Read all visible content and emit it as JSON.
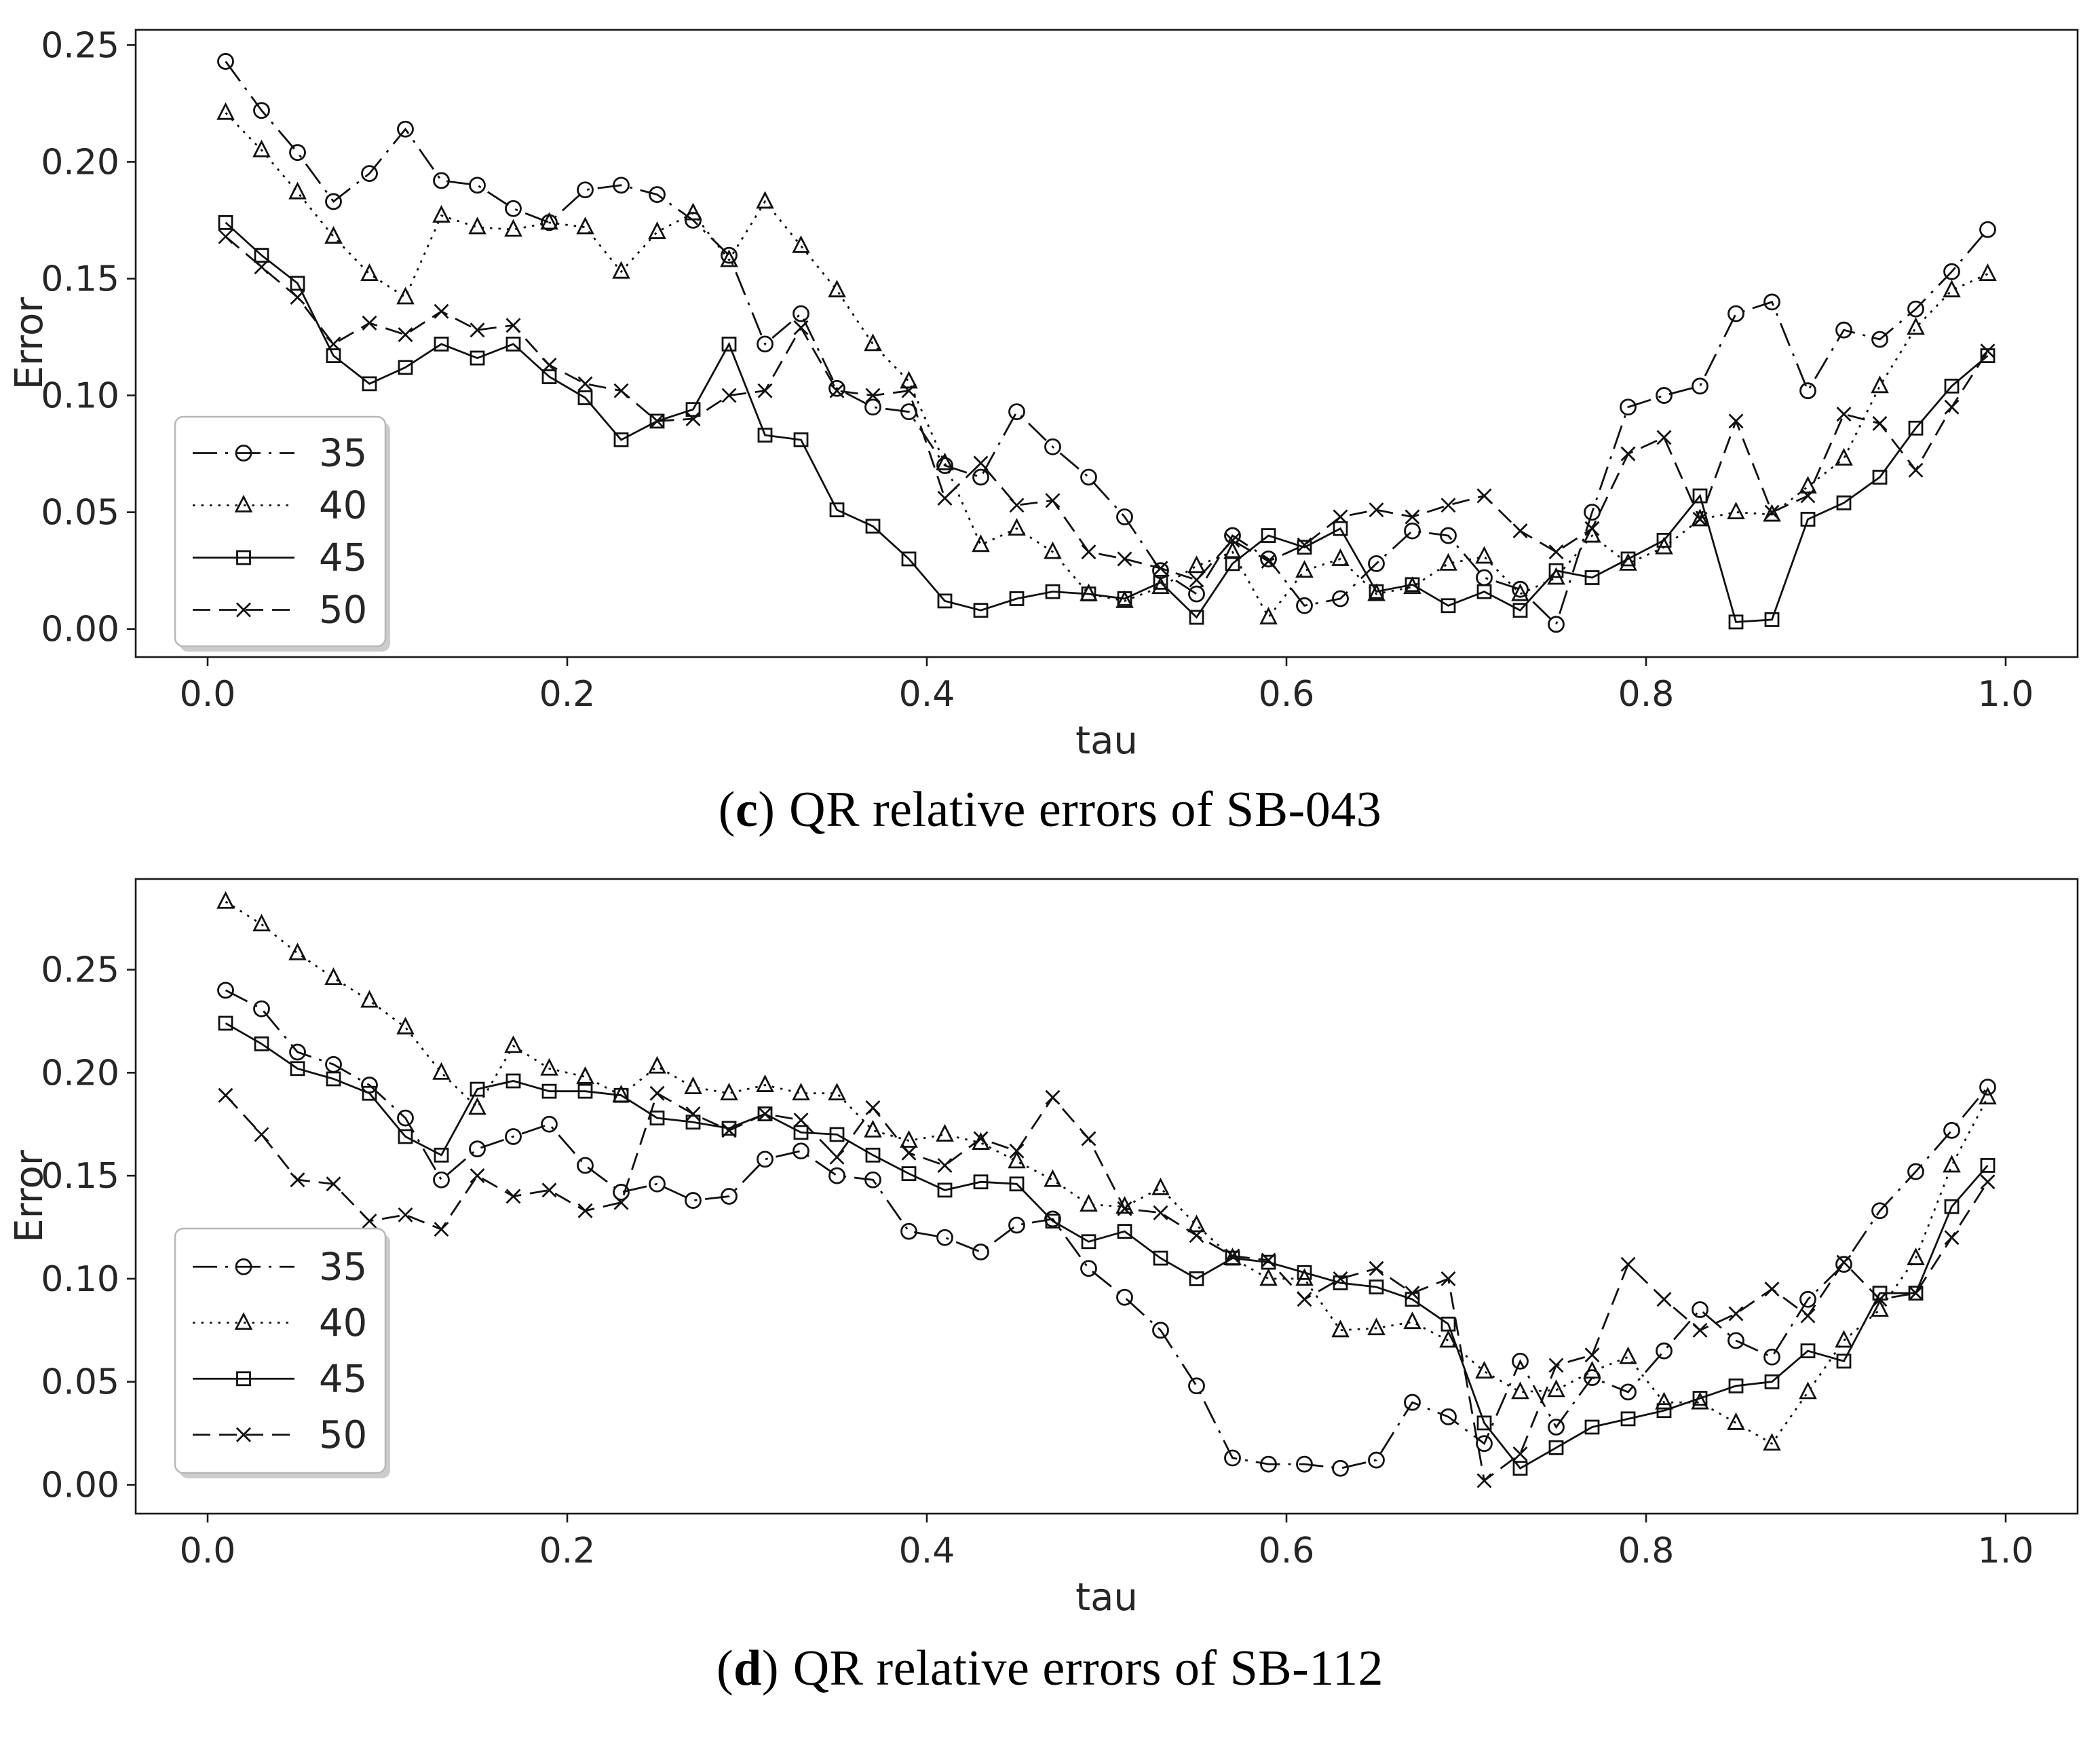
{
  "colors": {
    "line": "#111111",
    "spine": "#1a1a1a",
    "tick_label": "#262626",
    "legend_border": "#b8b8b8",
    "legend_shadow": "#cccccc",
    "background": "#ffffff"
  },
  "figures": [
    {
      "caption": {
        "open": "(",
        "letter": "c",
        "close": ")",
        "text": "QR relative errors of SB-043"
      },
      "chart_data": {
        "type": "line",
        "xlabel": "tau",
        "ylabel": "Error",
        "xlim": [
          -0.04,
          1.04
        ],
        "ylim": [
          -0.012,
          0.2565
        ],
        "grid": false,
        "legend_position": "lower-left",
        "xticks": {
          "values": [
            0.0,
            0.2,
            0.4,
            0.6,
            0.8,
            1.0
          ],
          "labels": [
            "0.0",
            "0.2",
            "0.4",
            "0.6",
            "0.8",
            "1.0"
          ]
        },
        "yticks": {
          "values": [
            0.0,
            0.05,
            0.1,
            0.15,
            0.2,
            0.25
          ],
          "labels": [
            "0.00",
            "0.05",
            "0.10",
            "0.15",
            "0.20",
            "0.25"
          ]
        },
        "x": [
          0.01,
          0.03,
          0.05,
          0.07,
          0.09,
          0.11,
          0.13,
          0.15,
          0.17,
          0.19,
          0.21,
          0.23,
          0.25,
          0.27,
          0.29,
          0.31,
          0.33,
          0.35,
          0.37,
          0.39,
          0.41,
          0.43,
          0.45,
          0.47,
          0.49,
          0.51,
          0.53,
          0.55,
          0.57,
          0.59,
          0.61,
          0.63,
          0.65,
          0.67,
          0.69,
          0.71,
          0.73,
          0.75,
          0.77,
          0.79,
          0.81,
          0.83,
          0.85,
          0.87,
          0.89,
          0.91,
          0.93,
          0.95,
          0.97,
          0.99
        ],
        "series": [
          {
            "name": "35",
            "marker": "circle",
            "line": "dashdot",
            "values": [
              0.243,
              0.222,
              0.204,
              0.183,
              0.195,
              0.214,
              0.192,
              0.19,
              0.18,
              0.174,
              0.188,
              0.19,
              0.186,
              0.175,
              0.16,
              0.122,
              0.135,
              0.103,
              0.095,
              0.093,
              0.07,
              0.065,
              0.093,
              0.078,
              0.065,
              0.048,
              0.025,
              0.015,
              0.04,
              0.03,
              0.01,
              0.013,
              0.028,
              0.042,
              0.04,
              0.022,
              0.017,
              0.002,
              0.05,
              0.095,
              0.1,
              0.104,
              0.135,
              0.14,
              0.102,
              0.128,
              0.124,
              0.137,
              0.153,
              0.171
            ]
          },
          {
            "name": "40",
            "marker": "triangle",
            "line": "dotted",
            "values": [
              0.221,
              0.205,
              0.187,
              0.168,
              0.152,
              0.142,
              0.177,
              0.172,
              0.171,
              0.174,
              0.172,
              0.153,
              0.17,
              0.178,
              0.158,
              0.183,
              0.164,
              0.145,
              0.122,
              0.106,
              0.071,
              0.036,
              0.043,
              0.033,
              0.015,
              0.012,
              0.018,
              0.027,
              0.033,
              0.005,
              0.025,
              0.03,
              0.015,
              0.018,
              0.028,
              0.031,
              0.015,
              0.022,
              0.04,
              0.028,
              0.035,
              0.047,
              0.05,
              0.049,
              0.061,
              0.073,
              0.104,
              0.129,
              0.145,
              0.152
            ]
          },
          {
            "name": "45",
            "marker": "square",
            "line": "solid",
            "values": [
              0.174,
              0.16,
              0.148,
              0.117,
              0.105,
              0.112,
              0.122,
              0.116,
              0.122,
              0.108,
              0.099,
              0.081,
              0.089,
              0.094,
              0.122,
              0.083,
              0.081,
              0.051,
              0.044,
              0.03,
              0.012,
              0.008,
              0.013,
              0.016,
              0.015,
              0.013,
              0.02,
              0.005,
              0.028,
              0.04,
              0.035,
              0.043,
              0.016,
              0.019,
              0.01,
              0.016,
              0.008,
              0.025,
              0.022,
              0.03,
              0.038,
              0.057,
              0.003,
              0.004,
              0.047,
              0.054,
              0.065,
              0.086,
              0.104,
              0.117
            ]
          },
          {
            "name": "50",
            "marker": "x",
            "line": "dashed",
            "values": [
              0.168,
              0.155,
              0.142,
              0.122,
              0.131,
              0.126,
              0.136,
              0.128,
              0.13,
              0.113,
              0.105,
              0.102,
              0.089,
              0.09,
              0.1,
              0.102,
              0.129,
              0.102,
              0.1,
              0.102,
              0.056,
              0.071,
              0.053,
              0.055,
              0.033,
              0.03,
              0.026,
              0.021,
              0.038,
              0.029,
              0.036,
              0.048,
              0.051,
              0.048,
              0.053,
              0.057,
              0.042,
              0.033,
              0.043,
              0.075,
              0.082,
              0.047,
              0.089,
              0.05,
              0.057,
              0.092,
              0.088,
              0.068,
              0.095,
              0.119
            ]
          }
        ]
      }
    },
    {
      "caption": {
        "open": "(",
        "letter": "d",
        "close": ")",
        "text": "QR relative errors of SB-112"
      },
      "chart_data": {
        "type": "line",
        "xlabel": "tau",
        "ylabel": "Error",
        "xlim": [
          -0.04,
          1.04
        ],
        "ylim": [
          -0.014,
          0.294
        ],
        "grid": false,
        "legend_position": "lower-left",
        "xticks": {
          "values": [
            0.0,
            0.2,
            0.4,
            0.6,
            0.8,
            1.0
          ],
          "labels": [
            "0.0",
            "0.2",
            "0.4",
            "0.6",
            "0.8",
            "1.0"
          ]
        },
        "yticks": {
          "values": [
            0.0,
            0.05,
            0.1,
            0.15,
            0.2,
            0.25
          ],
          "labels": [
            "0.00",
            "0.05",
            "0.10",
            "0.15",
            "0.20",
            "0.25"
          ]
        },
        "x": [
          0.01,
          0.03,
          0.05,
          0.07,
          0.09,
          0.11,
          0.13,
          0.15,
          0.17,
          0.19,
          0.21,
          0.23,
          0.25,
          0.27,
          0.29,
          0.31,
          0.33,
          0.35,
          0.37,
          0.39,
          0.41,
          0.43,
          0.45,
          0.47,
          0.49,
          0.51,
          0.53,
          0.55,
          0.57,
          0.59,
          0.61,
          0.63,
          0.65,
          0.67,
          0.69,
          0.71,
          0.73,
          0.75,
          0.77,
          0.79,
          0.81,
          0.83,
          0.85,
          0.87,
          0.89,
          0.91,
          0.93,
          0.95,
          0.97,
          0.99
        ],
        "series": [
          {
            "name": "35",
            "marker": "circle",
            "line": "dashdot",
            "values": [
              0.24,
              0.231,
              0.21,
              0.204,
              0.194,
              0.178,
              0.148,
              0.163,
              0.169,
              0.175,
              0.155,
              0.142,
              0.146,
              0.138,
              0.14,
              0.158,
              0.162,
              0.15,
              0.148,
              0.123,
              0.12,
              0.113,
              0.126,
              0.129,
              0.105,
              0.091,
              0.075,
              0.048,
              0.013,
              0.01,
              0.01,
              0.008,
              0.012,
              0.04,
              0.033,
              0.02,
              0.06,
              0.028,
              0.052,
              0.045,
              0.065,
              0.085,
              0.07,
              0.062,
              0.09,
              0.107,
              0.133,
              0.152,
              0.172,
              0.193
            ]
          },
          {
            "name": "40",
            "marker": "triangle",
            "line": "dotted",
            "values": [
              0.283,
              0.272,
              0.258,
              0.246,
              0.235,
              0.222,
              0.2,
              0.183,
              0.213,
              0.202,
              0.198,
              0.189,
              0.203,
              0.193,
              0.19,
              0.194,
              0.19,
              0.19,
              0.172,
              0.167,
              0.17,
              0.166,
              0.157,
              0.148,
              0.136,
              0.135,
              0.144,
              0.126,
              0.11,
              0.1,
              0.1,
              0.075,
              0.076,
              0.079,
              0.07,
              0.055,
              0.045,
              0.046,
              0.055,
              0.062,
              0.04,
              0.04,
              0.03,
              0.02,
              0.045,
              0.07,
              0.085,
              0.11,
              0.155,
              0.188
            ]
          },
          {
            "name": "45",
            "marker": "square",
            "line": "solid",
            "values": [
              0.224,
              0.214,
              0.202,
              0.197,
              0.19,
              0.169,
              0.16,
              0.192,
              0.196,
              0.191,
              0.191,
              0.189,
              0.178,
              0.176,
              0.173,
              0.18,
              0.171,
              0.17,
              0.16,
              0.151,
              0.143,
              0.147,
              0.146,
              0.128,
              0.118,
              0.123,
              0.11,
              0.1,
              0.11,
              0.108,
              0.103,
              0.098,
              0.096,
              0.09,
              0.078,
              0.03,
              0.008,
              0.018,
              0.028,
              0.032,
              0.036,
              0.042,
              0.048,
              0.05,
              0.065,
              0.06,
              0.093,
              0.093,
              0.135,
              0.155
            ]
          },
          {
            "name": "50",
            "marker": "x",
            "line": "dashed",
            "values": [
              0.189,
              0.17,
              0.148,
              0.146,
              0.128,
              0.131,
              0.124,
              0.15,
              0.14,
              0.143,
              0.133,
              0.137,
              0.19,
              0.18,
              0.172,
              0.18,
              0.177,
              0.159,
              0.183,
              0.161,
              0.155,
              0.168,
              0.162,
              0.188,
              0.168,
              0.134,
              0.132,
              0.121,
              0.111,
              0.109,
              0.09,
              0.1,
              0.105,
              0.093,
              0.1,
              0.002,
              0.015,
              0.058,
              0.063,
              0.107,
              0.09,
              0.075,
              0.083,
              0.095,
              0.082,
              0.108,
              0.09,
              0.093,
              0.12,
              0.147
            ]
          }
        ]
      }
    }
  ]
}
